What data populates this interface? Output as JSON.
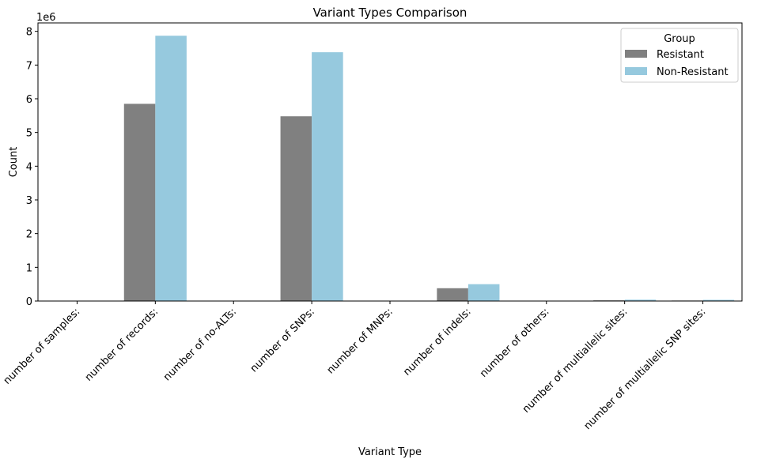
{
  "chart_data": {
    "type": "bar",
    "title": "Variant Types Comparison",
    "xlabel": "Variant Type",
    "ylabel": "Count",
    "y_offset_label": "1e6",
    "ylim": [
      0,
      8.25
    ],
    "yticks": [
      0,
      1,
      2,
      3,
      4,
      5,
      6,
      7,
      8
    ],
    "categories": [
      "number of samples:",
      "number of records:",
      "number of no-ALTs:",
      "number of SNPs:",
      "number of MNPs:",
      "number of indels:",
      "number of others:",
      "number of multiallelic sites:",
      "number of multiallelic SNP sites:"
    ],
    "series": [
      {
        "name": "Resistant",
        "color": "#808080",
        "values": [
          0.0,
          5.85,
          0.0,
          5.48,
          0.0,
          0.38,
          0.0,
          0.02,
          0.015
        ]
      },
      {
        "name": "Non-Resistant",
        "color": "#96c9de",
        "values": [
          0.0,
          7.87,
          0.0,
          7.38,
          0.0,
          0.5,
          0.0,
          0.04,
          0.035
        ]
      }
    ],
    "legend": {
      "title": "Group",
      "position": "top-right"
    },
    "grid": false
  }
}
